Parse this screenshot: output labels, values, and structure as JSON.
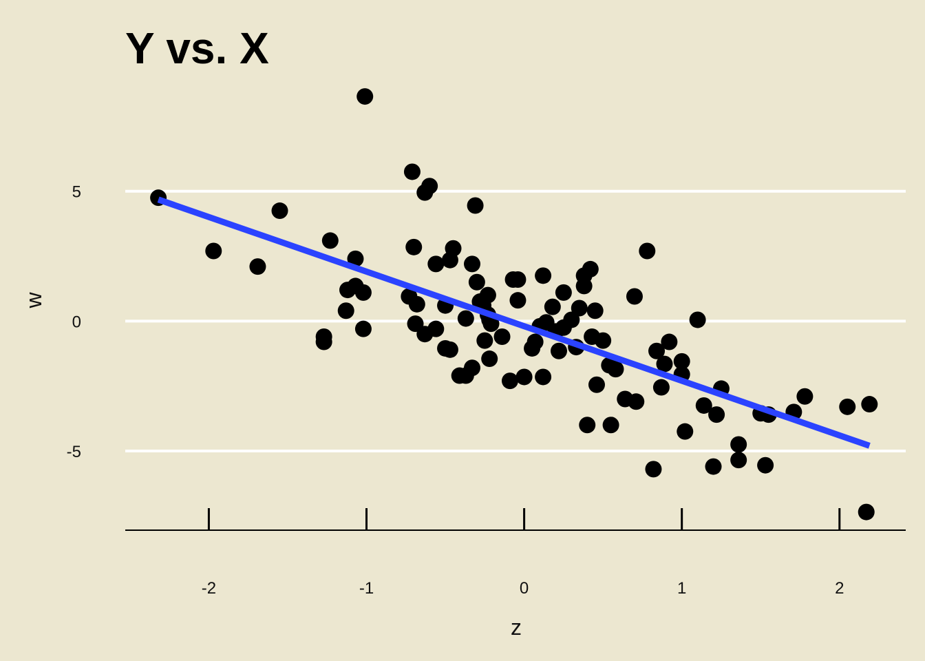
{
  "chart_data": {
    "type": "scatter",
    "title": "Y vs. X",
    "xlabel": "z",
    "ylabel": "w",
    "xlim": [
      -2.53,
      2.42
    ],
    "ylim": [
      -8.05,
      9.5
    ],
    "x_ticks": [
      -2,
      -1,
      0,
      1,
      2
    ],
    "y_ticks": [
      -5,
      0,
      5
    ],
    "grid": "horizontal",
    "legend": "none",
    "colors": {
      "background": "#ECE7D0",
      "points": "#000000",
      "fit_line": "#2B43FF",
      "grid": "#FFFFFF",
      "axis": "#000000"
    },
    "points": [
      {
        "x": -2.32,
        "y": 4.75
      },
      {
        "x": -1.97,
        "y": 2.7
      },
      {
        "x": -1.69,
        "y": 2.1
      },
      {
        "x": -1.55,
        "y": 4.25
      },
      {
        "x": -1.27,
        "y": -0.6
      },
      {
        "x": -1.27,
        "y": -0.8
      },
      {
        "x": -1.23,
        "y": 3.1
      },
      {
        "x": -1.13,
        "y": 0.4
      },
      {
        "x": -1.12,
        "y": 1.2
      },
      {
        "x": -1.07,
        "y": 1.35
      },
      {
        "x": -1.07,
        "y": 2.4
      },
      {
        "x": -1.02,
        "y": 1.1
      },
      {
        "x": -1.02,
        "y": -0.3
      },
      {
        "x": -1.01,
        "y": 8.65
      },
      {
        "x": -0.73,
        "y": 0.95
      },
      {
        "x": -0.71,
        "y": 5.75
      },
      {
        "x": -0.7,
        "y": 2.85
      },
      {
        "x": -0.69,
        "y": -0.1
      },
      {
        "x": -0.68,
        "y": 0.65
      },
      {
        "x": -0.63,
        "y": 4.95
      },
      {
        "x": -0.63,
        "y": -0.5
      },
      {
        "x": -0.6,
        "y": 5.2
      },
      {
        "x": -0.56,
        "y": -0.3
      },
      {
        "x": -0.56,
        "y": 2.2
      },
      {
        "x": -0.5,
        "y": 0.6
      },
      {
        "x": -0.5,
        "y": -1.05
      },
      {
        "x": -0.47,
        "y": -1.1
      },
      {
        "x": -0.47,
        "y": 2.35
      },
      {
        "x": -0.45,
        "y": 2.8
      },
      {
        "x": -0.41,
        "y": -2.1
      },
      {
        "x": -0.37,
        "y": -2.1
      },
      {
        "x": -0.37,
        "y": 0.1
      },
      {
        "x": -0.33,
        "y": -1.8
      },
      {
        "x": -0.33,
        "y": 2.2
      },
      {
        "x": -0.31,
        "y": 4.45
      },
      {
        "x": -0.3,
        "y": 1.5
      },
      {
        "x": -0.28,
        "y": 0.75
      },
      {
        "x": -0.26,
        "y": 0.6
      },
      {
        "x": -0.25,
        "y": -0.75
      },
      {
        "x": -0.23,
        "y": 1.0
      },
      {
        "x": -0.23,
        "y": 0.25
      },
      {
        "x": -0.22,
        "y": -1.45
      },
      {
        "x": -0.22,
        "y": 0.05
      },
      {
        "x": -0.21,
        "y": -0.1
      },
      {
        "x": -0.14,
        "y": -0.6
      },
      {
        "x": -0.09,
        "y": -2.3
      },
      {
        "x": -0.07,
        "y": 1.6
      },
      {
        "x": -0.04,
        "y": 1.6
      },
      {
        "x": -0.04,
        "y": 0.8
      },
      {
        "x": 0.0,
        "y": -2.15
      },
      {
        "x": 0.05,
        "y": -1.05
      },
      {
        "x": 0.07,
        "y": -0.8
      },
      {
        "x": 0.1,
        "y": -0.2
      },
      {
        "x": 0.12,
        "y": 1.75
      },
      {
        "x": 0.12,
        "y": -2.15
      },
      {
        "x": 0.14,
        "y": -0.05
      },
      {
        "x": 0.18,
        "y": 0.55
      },
      {
        "x": 0.2,
        "y": -0.4
      },
      {
        "x": 0.22,
        "y": -1.15
      },
      {
        "x": 0.25,
        "y": -0.25
      },
      {
        "x": 0.25,
        "y": 1.1
      },
      {
        "x": 0.3,
        "y": 0.05
      },
      {
        "x": 0.33,
        "y": -1.0
      },
      {
        "x": 0.35,
        "y": 0.5
      },
      {
        "x": 0.38,
        "y": 1.35
      },
      {
        "x": 0.38,
        "y": 1.75
      },
      {
        "x": 0.4,
        "y": -4.0
      },
      {
        "x": 0.42,
        "y": 2.0
      },
      {
        "x": 0.43,
        "y": -0.6
      },
      {
        "x": 0.45,
        "y": 0.4
      },
      {
        "x": 0.46,
        "y": -2.45
      },
      {
        "x": 0.5,
        "y": -0.75
      },
      {
        "x": 0.54,
        "y": -1.7
      },
      {
        "x": 0.55,
        "y": -4.0
      },
      {
        "x": 0.58,
        "y": -1.85
      },
      {
        "x": 0.64,
        "y": -3.0
      },
      {
        "x": 0.7,
        "y": 0.95
      },
      {
        "x": 0.71,
        "y": -3.1
      },
      {
        "x": 0.78,
        "y": 2.7
      },
      {
        "x": 0.82,
        "y": -5.7
      },
      {
        "x": 0.84,
        "y": -1.15
      },
      {
        "x": 0.87,
        "y": -2.55
      },
      {
        "x": 0.89,
        "y": -1.65
      },
      {
        "x": 0.92,
        "y": -0.8
      },
      {
        "x": 1.0,
        "y": -1.55
      },
      {
        "x": 1.0,
        "y": -2.05
      },
      {
        "x": 1.02,
        "y": -4.25
      },
      {
        "x": 1.1,
        "y": 0.05
      },
      {
        "x": 1.14,
        "y": -3.25
      },
      {
        "x": 1.2,
        "y": -5.6
      },
      {
        "x": 1.22,
        "y": -3.6
      },
      {
        "x": 1.25,
        "y": -2.6
      },
      {
        "x": 1.36,
        "y": -4.75
      },
      {
        "x": 1.36,
        "y": -5.35
      },
      {
        "x": 1.5,
        "y": -3.55
      },
      {
        "x": 1.53,
        "y": -5.55
      },
      {
        "x": 1.55,
        "y": -3.6
      },
      {
        "x": 1.71,
        "y": -3.5
      },
      {
        "x": 1.78,
        "y": -2.9
      },
      {
        "x": 2.05,
        "y": -3.3
      },
      {
        "x": 2.17,
        "y": -7.35
      },
      {
        "x": 2.19,
        "y": -3.2
      }
    ],
    "fit_line": {
      "x": [
        -2.32,
        2.19
      ],
      "y": [
        4.68,
        -4.8
      ]
    }
  }
}
